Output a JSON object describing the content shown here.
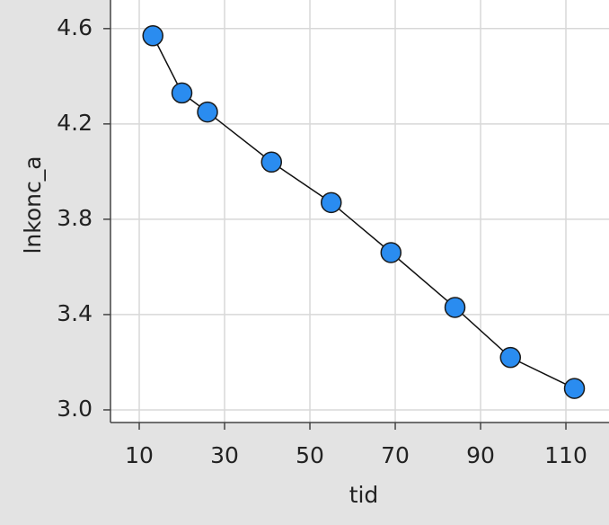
{
  "chart_data": {
    "type": "line",
    "x_label": "tid",
    "y_label": "lnkonc_a",
    "x": [
      13.2,
      20,
      26,
      41,
      55,
      69,
      84,
      97,
      112
    ],
    "series": [
      {
        "name": "lnkonc_a",
        "color": "#2a8cf0",
        "values": [
          4.57,
          4.33,
          4.25,
          4.04,
          3.87,
          3.66,
          3.43,
          3.22,
          3.09
        ]
      }
    ],
    "xlim": [
      3.26,
      120.1
    ],
    "ylim": [
      2.947,
      4.72
    ],
    "xticks": [
      10,
      30,
      50,
      70,
      90,
      110
    ],
    "yticks": [
      {
        "value": 3,
        "label": "3.0"
      },
      3.4,
      3.8,
      4.2,
      4.6
    ],
    "grid": true
  }
}
